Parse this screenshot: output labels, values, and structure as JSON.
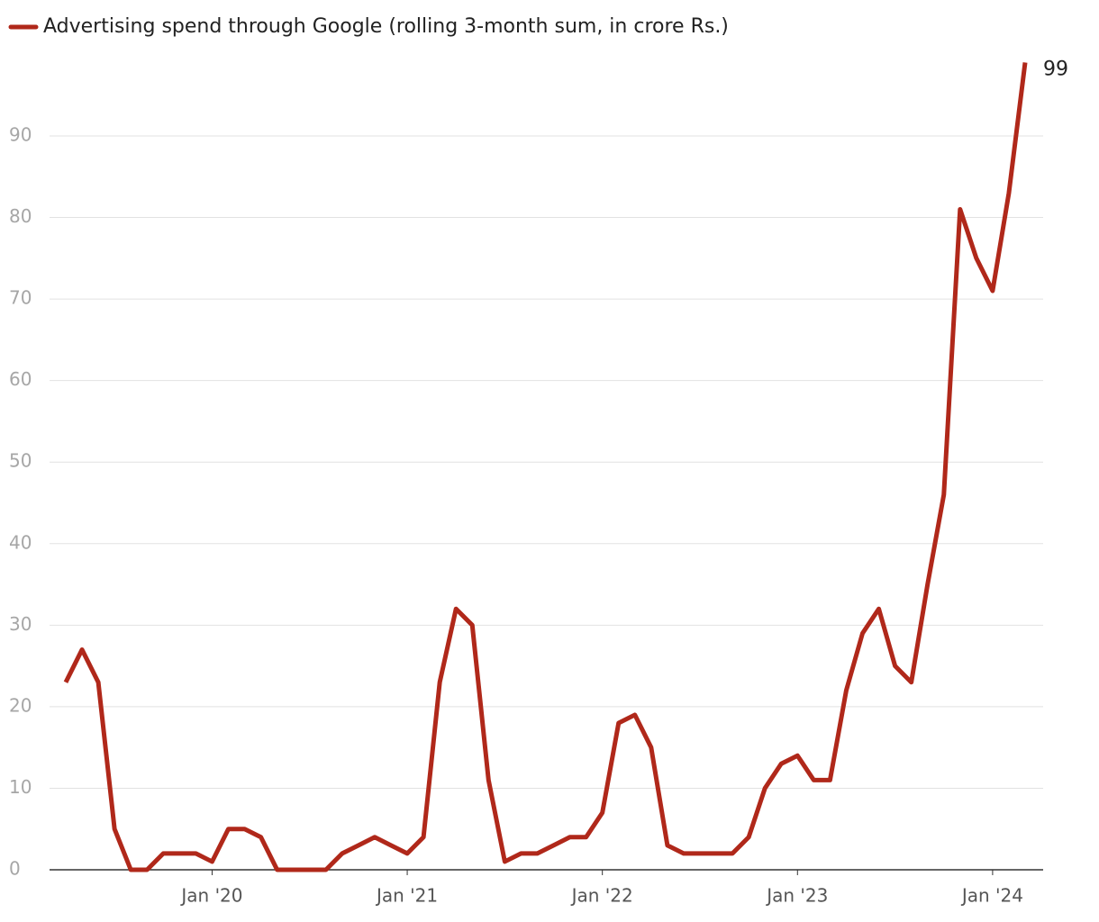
{
  "chart_data": {
    "type": "line",
    "categories": [
      null,
      null,
      null,
      null,
      null,
      null,
      null,
      null,
      null,
      "Jan '20",
      null,
      null,
      null,
      null,
      null,
      null,
      null,
      null,
      null,
      null,
      null,
      "Jan '21",
      null,
      null,
      null,
      null,
      null,
      null,
      null,
      null,
      null,
      null,
      null,
      "Jan '22",
      null,
      null,
      null,
      null,
      null,
      null,
      null,
      null,
      null,
      null,
      null,
      "Jan '23",
      null,
      null,
      null,
      null,
      null,
      null,
      null,
      null,
      null,
      null,
      null,
      "Jan '24",
      null,
      null
    ],
    "series": [
      {
        "name": "Advertising spend through Google (rolling 3-month sum, in crore Rs.)",
        "color": "#b0281a",
        "values": [
          23,
          27,
          23,
          5,
          0,
          0,
          2,
          2,
          2,
          1,
          5,
          5,
          4,
          0,
          0,
          0,
          0,
          2,
          3,
          4,
          3,
          2,
          4,
          23,
          32,
          30,
          11,
          1,
          2,
          2,
          3,
          4,
          4,
          7,
          18,
          19,
          15,
          3,
          2,
          2,
          2,
          2,
          4,
          10,
          13,
          14,
          11,
          11,
          22,
          29,
          32,
          25,
          23,
          35,
          46,
          81,
          75,
          71,
          83,
          99
        ]
      }
    ],
    "ylim": [
      0,
      100
    ],
    "yticks": [
      0,
      10,
      20,
      30,
      40,
      50,
      60,
      70,
      80,
      90
    ],
    "grid": true
  }
}
